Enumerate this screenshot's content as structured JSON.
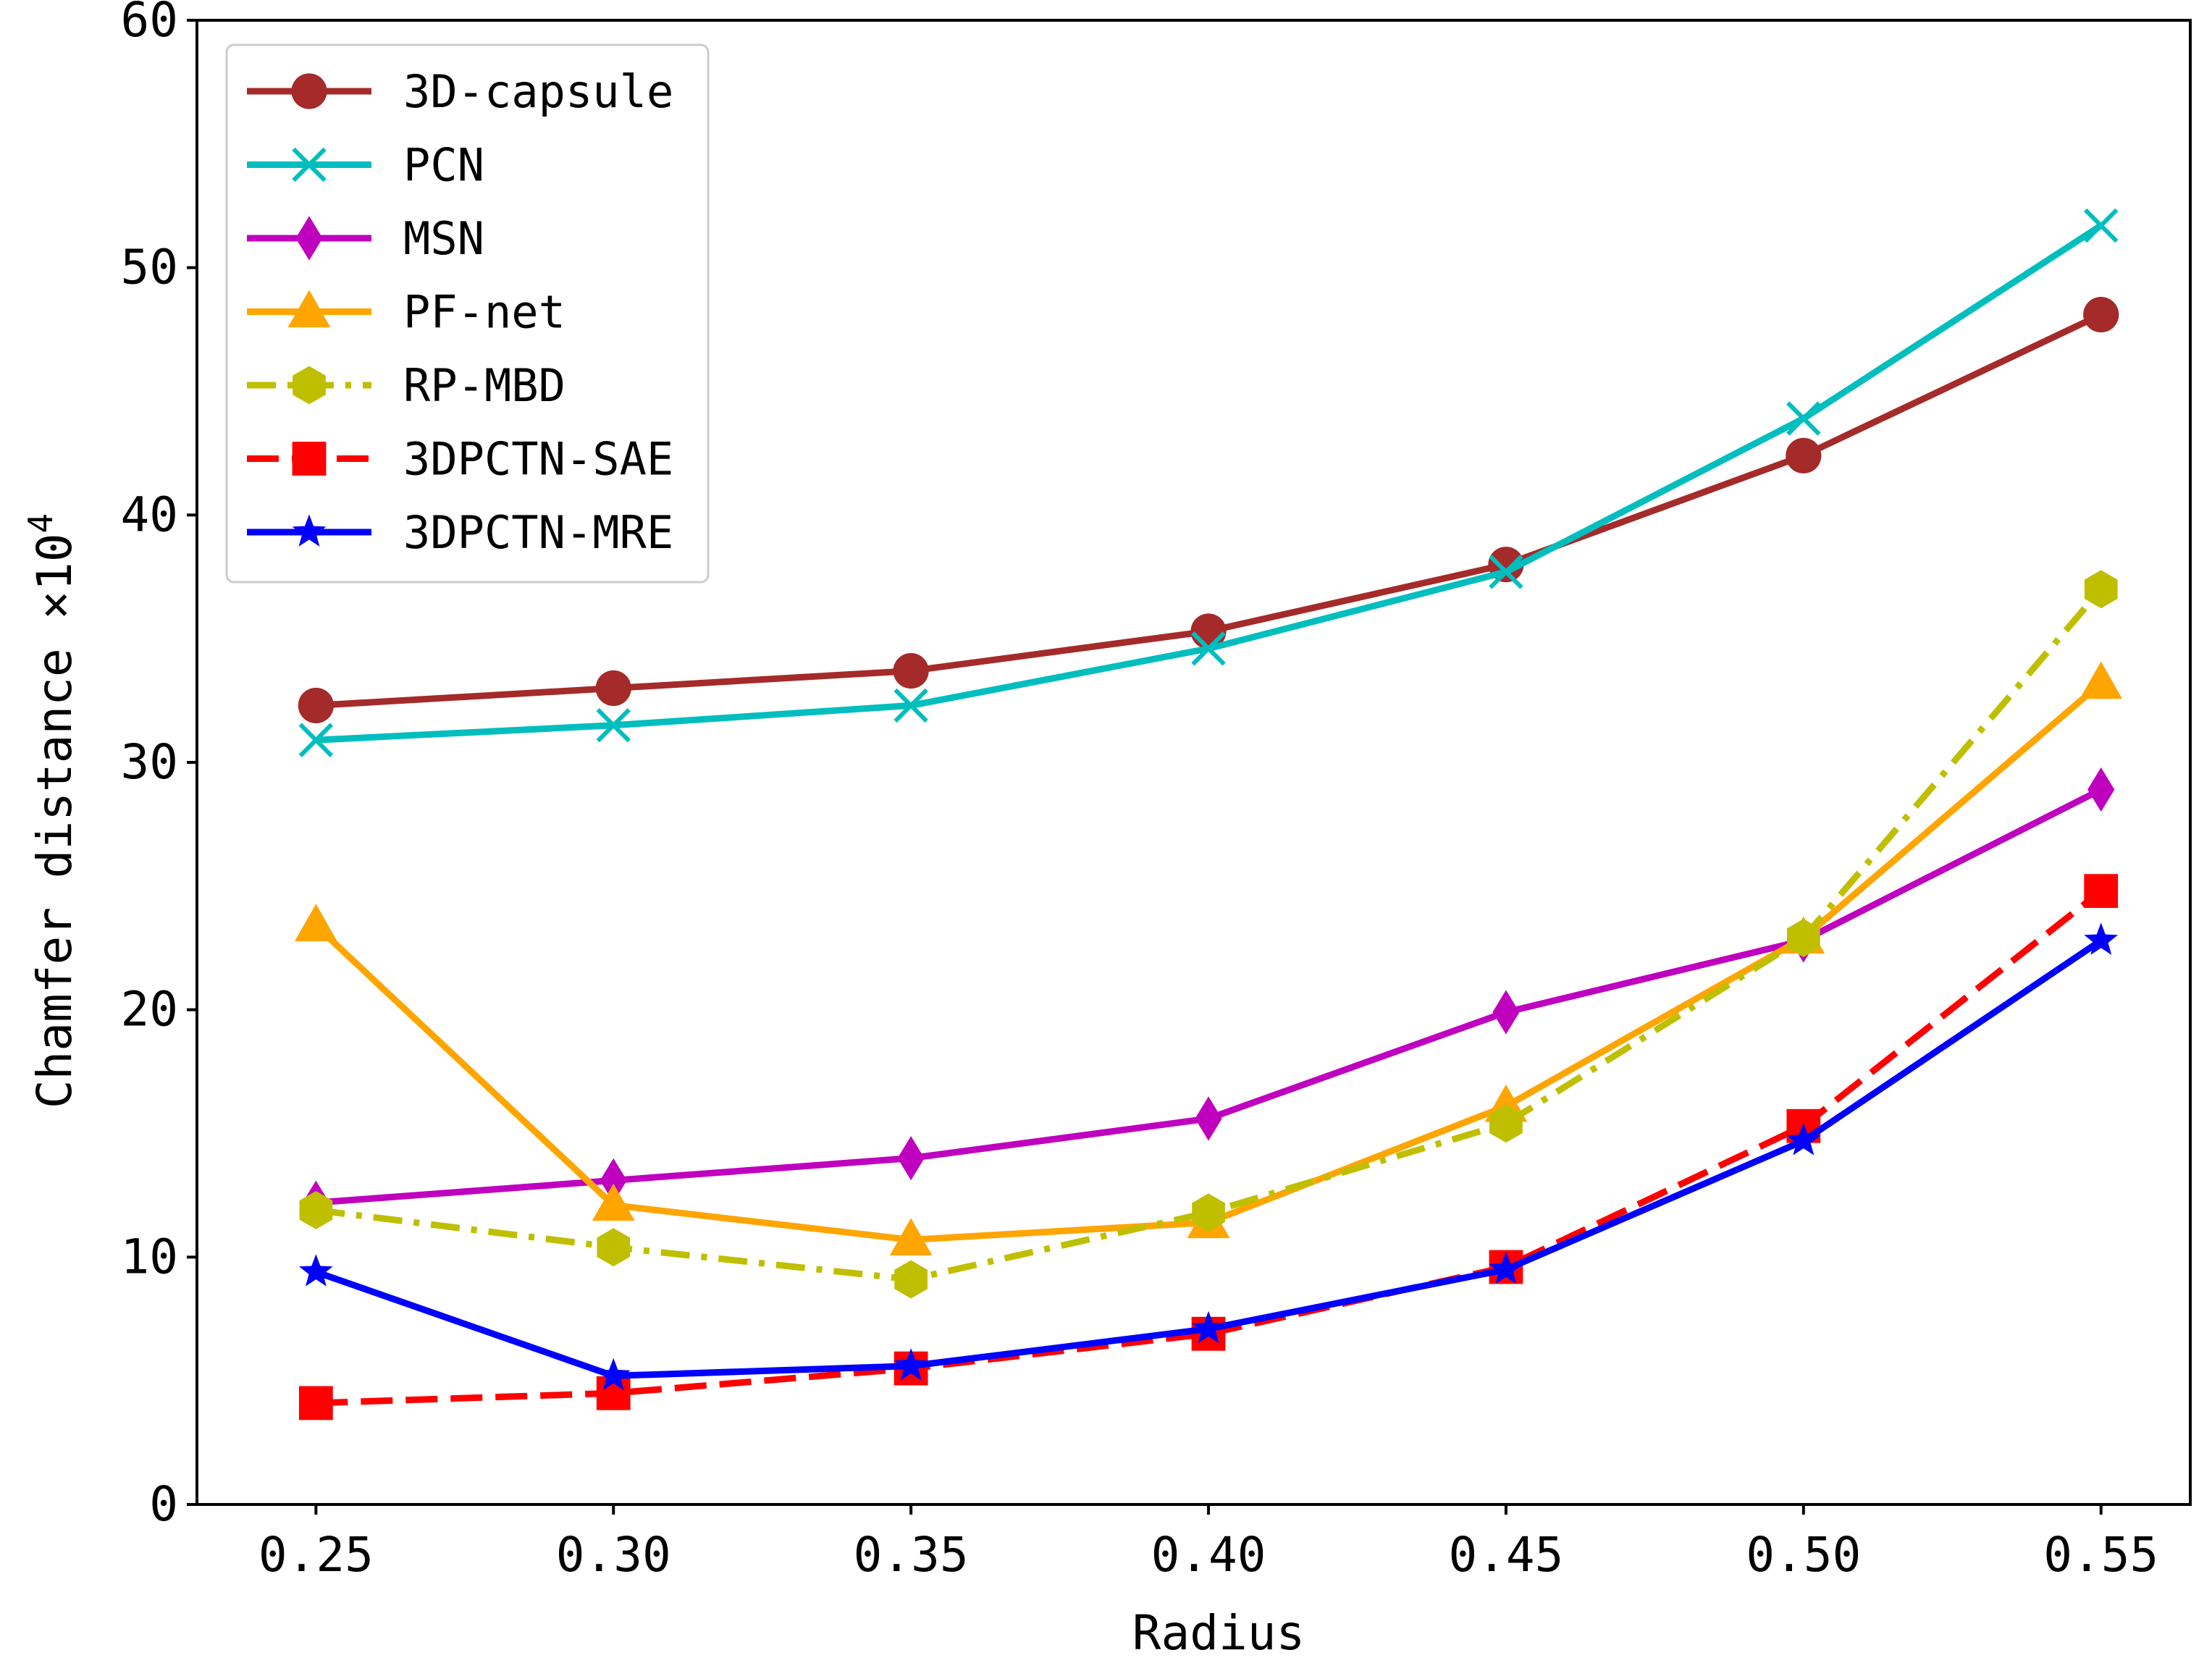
{
  "chart_data": {
    "type": "line",
    "title": "",
    "xlabel": "Radius",
    "ylabel": "Chamfer distance ×10",
    "ylabel_superscript": "4",
    "x": [
      0.25,
      0.3,
      0.35,
      0.4,
      0.45,
      0.5,
      0.55
    ],
    "x_tick_labels": [
      "0.25",
      "0.30",
      "0.35",
      "0.40",
      "0.45",
      "0.50",
      "0.55"
    ],
    "xlim": [
      0.23,
      0.565
    ],
    "ylim": [
      0,
      60
    ],
    "y_ticks": [
      0,
      10,
      20,
      30,
      40,
      50,
      60
    ],
    "y_tick_labels": [
      "0",
      "10",
      "20",
      "30",
      "40",
      "50",
      "60"
    ],
    "grid": false,
    "legend_position": "top-left",
    "series": [
      {
        "name": "3D-capsule",
        "color": "#a52a2a",
        "marker": "circle",
        "dash": "solid",
        "values": [
          32.3,
          33.0,
          33.7,
          35.3,
          38.0,
          42.4,
          48.1
        ]
      },
      {
        "name": "PCN",
        "color": "#00bebe",
        "marker": "x",
        "dash": "solid",
        "values": [
          30.9,
          31.5,
          32.3,
          34.6,
          37.7,
          43.9,
          51.7
        ]
      },
      {
        "name": "MSN",
        "color": "#bf00bf",
        "marker": "diamond",
        "dash": "solid",
        "values": [
          12.2,
          13.1,
          14.0,
          15.6,
          19.9,
          22.8,
          28.9
        ]
      },
      {
        "name": "PF-net",
        "color": "#ffa500",
        "marker": "triangle",
        "dash": "solid",
        "values": [
          23.4,
          12.1,
          10.7,
          11.4,
          16.1,
          22.9,
          33.2
        ]
      },
      {
        "name": "RP-MBD",
        "color": "#bfbf00",
        "marker": "hexagon",
        "dash": "dashdot",
        "values": [
          11.9,
          10.4,
          9.1,
          11.8,
          15.4,
          22.9,
          37.0
        ]
      },
      {
        "name": "3DPCTN-SAE",
        "color": "#ff0000",
        "marker": "square",
        "dash": "dashed",
        "values": [
          4.1,
          4.5,
          5.5,
          6.9,
          9.6,
          15.3,
          24.8
        ]
      },
      {
        "name": "3DPCTN-MRE",
        "color": "#0000ff",
        "marker": "star",
        "dash": "solid",
        "values": [
          9.4,
          5.2,
          5.6,
          7.1,
          9.5,
          14.7,
          22.8
        ]
      }
    ]
  }
}
